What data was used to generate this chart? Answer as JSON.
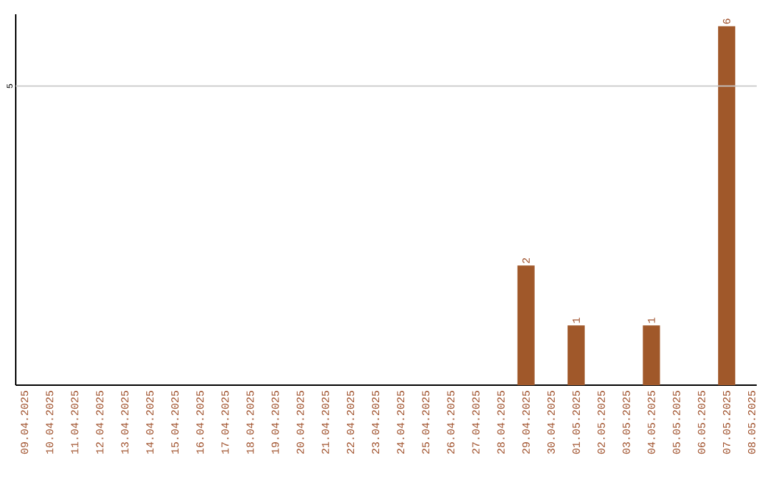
{
  "chart_data": {
    "type": "bar",
    "categories": [
      "09.04.2025",
      "10.04.2025",
      "11.04.2025",
      "12.04.2025",
      "13.04.2025",
      "14.04.2025",
      "15.04.2025",
      "16.04.2025",
      "17.04.2025",
      "18.04.2025",
      "19.04.2025",
      "20.04.2025",
      "21.04.2025",
      "22.04.2025",
      "23.04.2025",
      "24.04.2025",
      "25.04.2025",
      "26.04.2025",
      "27.04.2025",
      "28.04.2025",
      "29.04.2025",
      "30.04.2025",
      "01.05.2025",
      "02.05.2025",
      "03.05.2025",
      "04.05.2025",
      "05.05.2025",
      "06.05.2025",
      "07.05.2025",
      "08.05.2025"
    ],
    "values": [
      null,
      null,
      null,
      null,
      null,
      null,
      null,
      null,
      null,
      null,
      null,
      null,
      null,
      null,
      null,
      null,
      null,
      null,
      null,
      null,
      2,
      null,
      1,
      null,
      null,
      1,
      null,
      null,
      6,
      null
    ],
    "data_labels": true,
    "ylim": [
      0,
      6.2
    ],
    "color": "#a0582a",
    "ref_lines": [
      {
        "axis": "y",
        "value": 5,
        "label": "5",
        "color": "#c8c8c8"
      }
    ]
  }
}
